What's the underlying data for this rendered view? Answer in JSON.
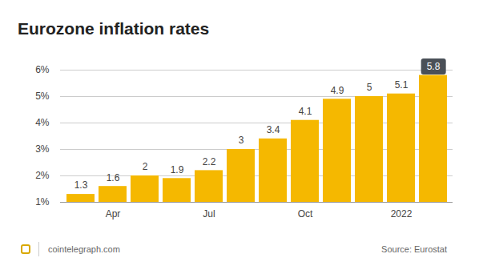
{
  "chart_data": {
    "type": "bar",
    "title": "Eurozone inflation rates",
    "categories": [
      null,
      "Apr",
      null,
      null,
      "Jul",
      null,
      null,
      "Oct",
      null,
      null,
      "2022",
      null
    ],
    "values": [
      1.3,
      1.6,
      2.0,
      1.9,
      2.2,
      3,
      3.4,
      4.1,
      4.9,
      5,
      5.1,
      5.8
    ],
    "color": "#f5b800",
    "ylim": [
      1,
      6
    ],
    "yticks": [
      {
        "value": 1,
        "label": "1%"
      },
      {
        "value": 2,
        "label": "2%"
      },
      {
        "value": 3,
        "label": "3%"
      },
      {
        "value": 4,
        "label": "4%"
      },
      {
        "value": 5,
        "label": "5%"
      },
      {
        "value": 6,
        "label": "6%"
      }
    ],
    "grid": true,
    "data_labels": true,
    "footer": "cointelegraph.com",
    "source": "Source: Eurostat"
  }
}
